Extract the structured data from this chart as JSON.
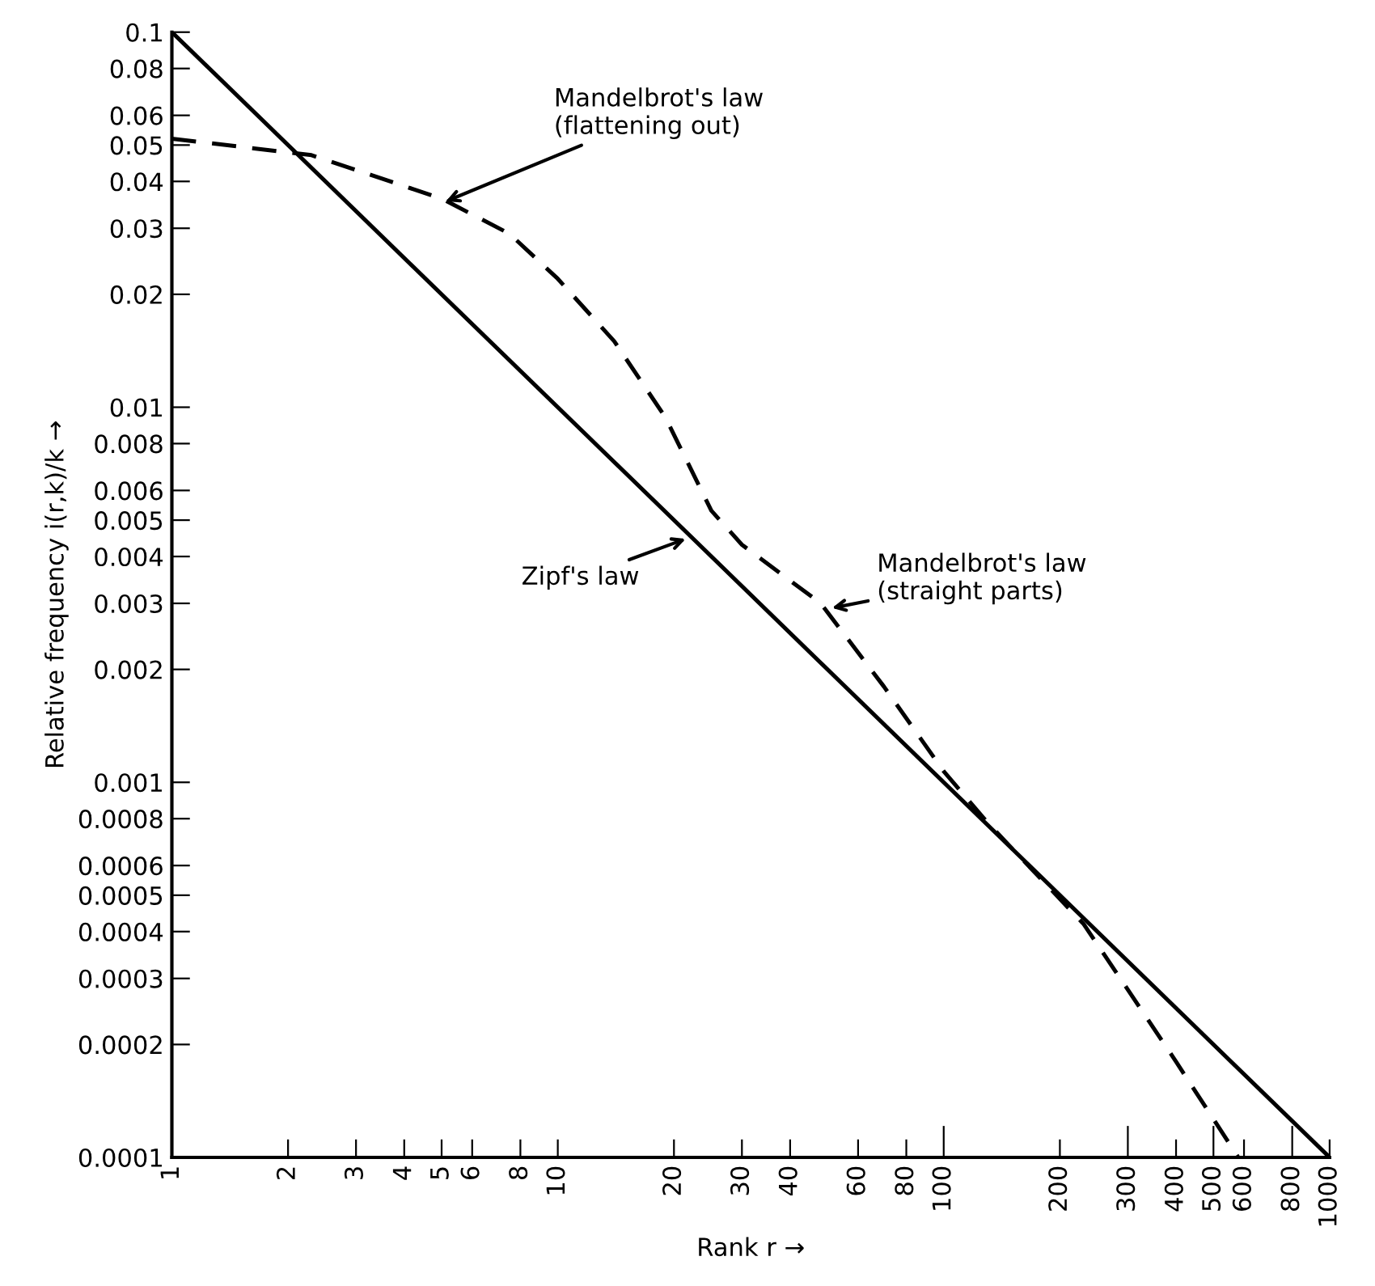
{
  "chart_data": {
    "type": "line",
    "log": "xy",
    "xlabel": "Rank r →",
    "ylabel": "Relative frequency i(r,k)/k →",
    "xlim": [
      1,
      1000
    ],
    "ylim": [
      0.0001,
      0.1
    ],
    "xticks": [
      1,
      2,
      3,
      4,
      5,
      6,
      8,
      10,
      20,
      30,
      40,
      60,
      80,
      100,
      200,
      300,
      400,
      500,
      600,
      800,
      1000
    ],
    "yticks": [
      0.0001,
      0.0002,
      0.0003,
      0.0004,
      0.0005,
      0.0006,
      0.0008,
      0.001,
      0.002,
      0.003,
      0.004,
      0.005,
      0.006,
      0.008,
      0.01,
      0.02,
      0.03,
      0.04,
      0.05,
      0.06,
      0.08,
      0.1
    ],
    "grid": false,
    "legend": false,
    "series": [
      {
        "color": "#000000",
        "line_style": "solid",
        "x": [
          1,
          1000
        ],
        "values": [
          0.1,
          0.0001
        ]
      },
      {
        "color": "#000000",
        "line_style": "dashed",
        "x": [
          1,
          2.3,
          5,
          7.5,
          10,
          14,
          19,
          25,
          30,
          48,
          70,
          100,
          130,
          230,
          300,
          400,
          580
        ],
        "values": [
          0.052,
          0.047,
          0.036,
          0.029,
          0.022,
          0.015,
          0.0094,
          0.0053,
          0.0043,
          0.003,
          0.0018,
          0.00107,
          0.00078,
          0.00042,
          0.00028,
          0.00018,
          0.0001
        ]
      }
    ],
    "annotations": [
      {
        "text": "Mandelbrot's law\n(flattening out)",
        "x": 5,
        "y": 0.035
      },
      {
        "text": "Zipf's law",
        "x": 22,
        "y": 0.0045
      },
      {
        "text": "Mandelbrot's law\n(straight parts)",
        "x": 50,
        "y": 0.0029
      }
    ]
  }
}
